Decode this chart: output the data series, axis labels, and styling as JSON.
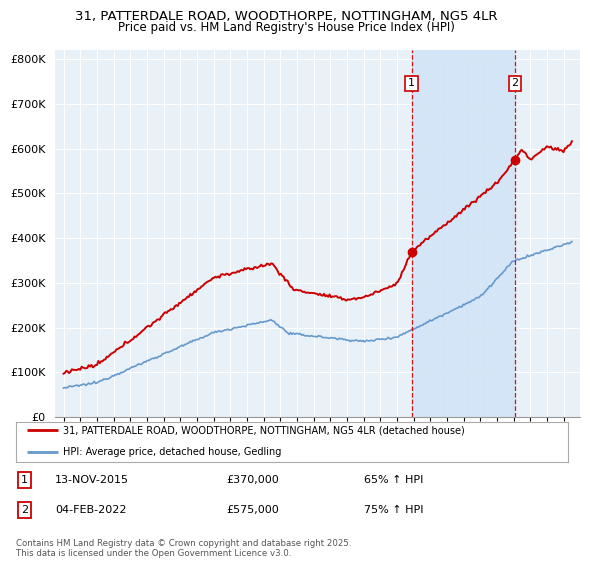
{
  "title": "31, PATTERDALE ROAD, WOODTHORPE, NOTTINGHAM, NG5 4LR",
  "subtitle": "Price paid vs. HM Land Registry's House Price Index (HPI)",
  "legend_line1": "31, PATTERDALE ROAD, WOODTHORPE, NOTTINGHAM, NG5 4LR (detached house)",
  "legend_line2": "HPI: Average price, detached house, Gedling",
  "sale1_date": "13-NOV-2015",
  "sale1_price": "£370,000",
  "sale1_info": "65% ↑ HPI",
  "sale2_date": "04-FEB-2022",
  "sale2_price": "£575,000",
  "sale2_info": "75% ↑ HPI",
  "footnote": "Contains HM Land Registry data © Crown copyright and database right 2025.\nThis data is licensed under the Open Government Licence v3.0.",
  "red_color": "#cc0000",
  "blue_color": "#6699cc",
  "shade_color": "#d0e4f7",
  "vline_color": "#cc0000",
  "background_color": "#e8f0f8",
  "ylim": [
    0,
    820000
  ],
  "yticks": [
    0,
    100000,
    200000,
    300000,
    400000,
    500000,
    600000,
    700000,
    800000
  ],
  "sale1_year": 2015.88,
  "sale2_year": 2022.09,
  "sale1_value": 370000,
  "sale2_value": 575000,
  "xmin": 1994.5,
  "xmax": 2026.0
}
